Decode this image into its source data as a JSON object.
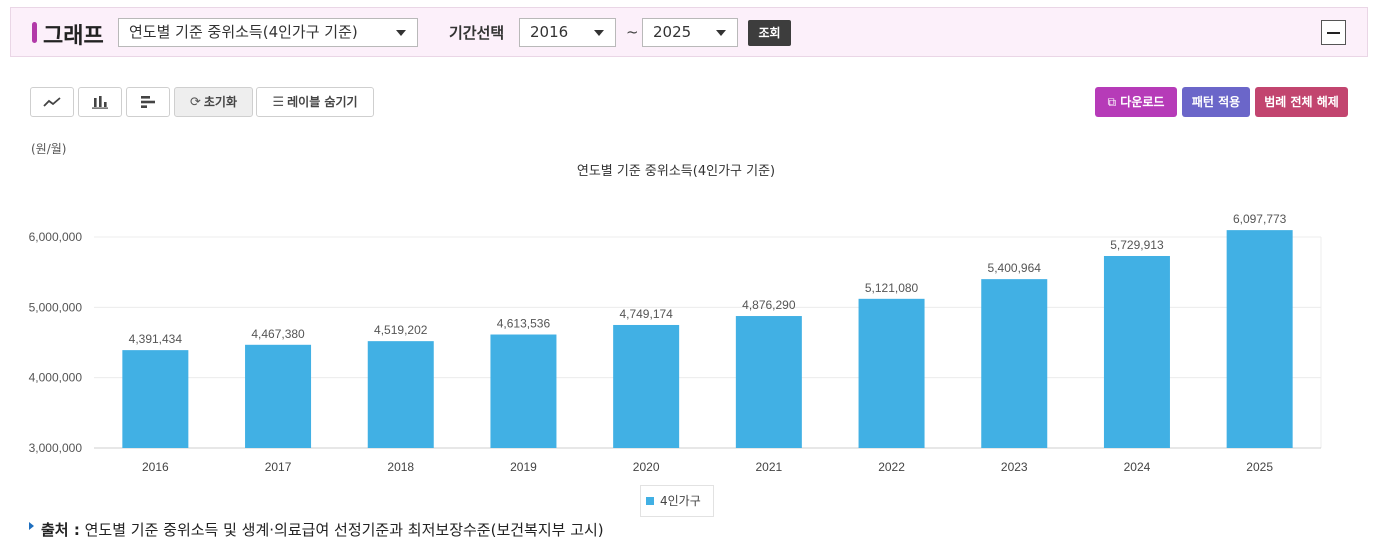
{
  "header": {
    "title": "그래프",
    "chart_select": "연도별 기준 중위소득(4인가구 기준)",
    "period_label": "기간선택",
    "start_year": "2016",
    "tilde": "~",
    "end_year": "2025",
    "query_label": "조회"
  },
  "toolbar": {
    "reset_label": "초기화",
    "hide_labels_label": "레이블 숨기기",
    "download_label": "다운로드",
    "pattern_label": "패턴 적용",
    "legend_clear_label": "범례 전체 해제"
  },
  "colors": {
    "accent": "#b23aa8",
    "bar": "#41b0e4",
    "download_btn": "#b63bb8",
    "pattern_btn": "#6b66c9",
    "legend_clear_btn": "#c2456f"
  },
  "chart_data": {
    "type": "bar",
    "title": "연도별 기준 중위소득(4인가구 기준)",
    "unit": "(원/월)",
    "categories": [
      "2016",
      "2017",
      "2018",
      "2019",
      "2020",
      "2021",
      "2022",
      "2023",
      "2024",
      "2025"
    ],
    "series": [
      {
        "name": "4인가구",
        "values": [
          4391434,
          4467380,
          4519202,
          4613536,
          4749174,
          4876290,
          5121080,
          5400964,
          5729913,
          6097773
        ]
      }
    ],
    "ylim": [
      3000000,
      6000000
    ],
    "yticks": [
      "3,000,000",
      "4,000,000",
      "5,000,000",
      "6,000,000"
    ],
    "ytick_values": [
      3000000,
      4000000,
      5000000,
      6000000
    ],
    "data_labels": [
      "4,391,434",
      "4,467,380",
      "4,519,202",
      "4,613,536",
      "4,749,174",
      "4,876,290",
      "5,121,080",
      "5,400,964",
      "5,729,913",
      "6,097,773"
    ],
    "grid": true,
    "legend_position": "bottom"
  },
  "footer": {
    "source_label": "출처 :",
    "source_text": "연도별 기준 중위소득 및 생계·의료급여 선정기준과 최저보장수준(보건복지부 고시)"
  }
}
